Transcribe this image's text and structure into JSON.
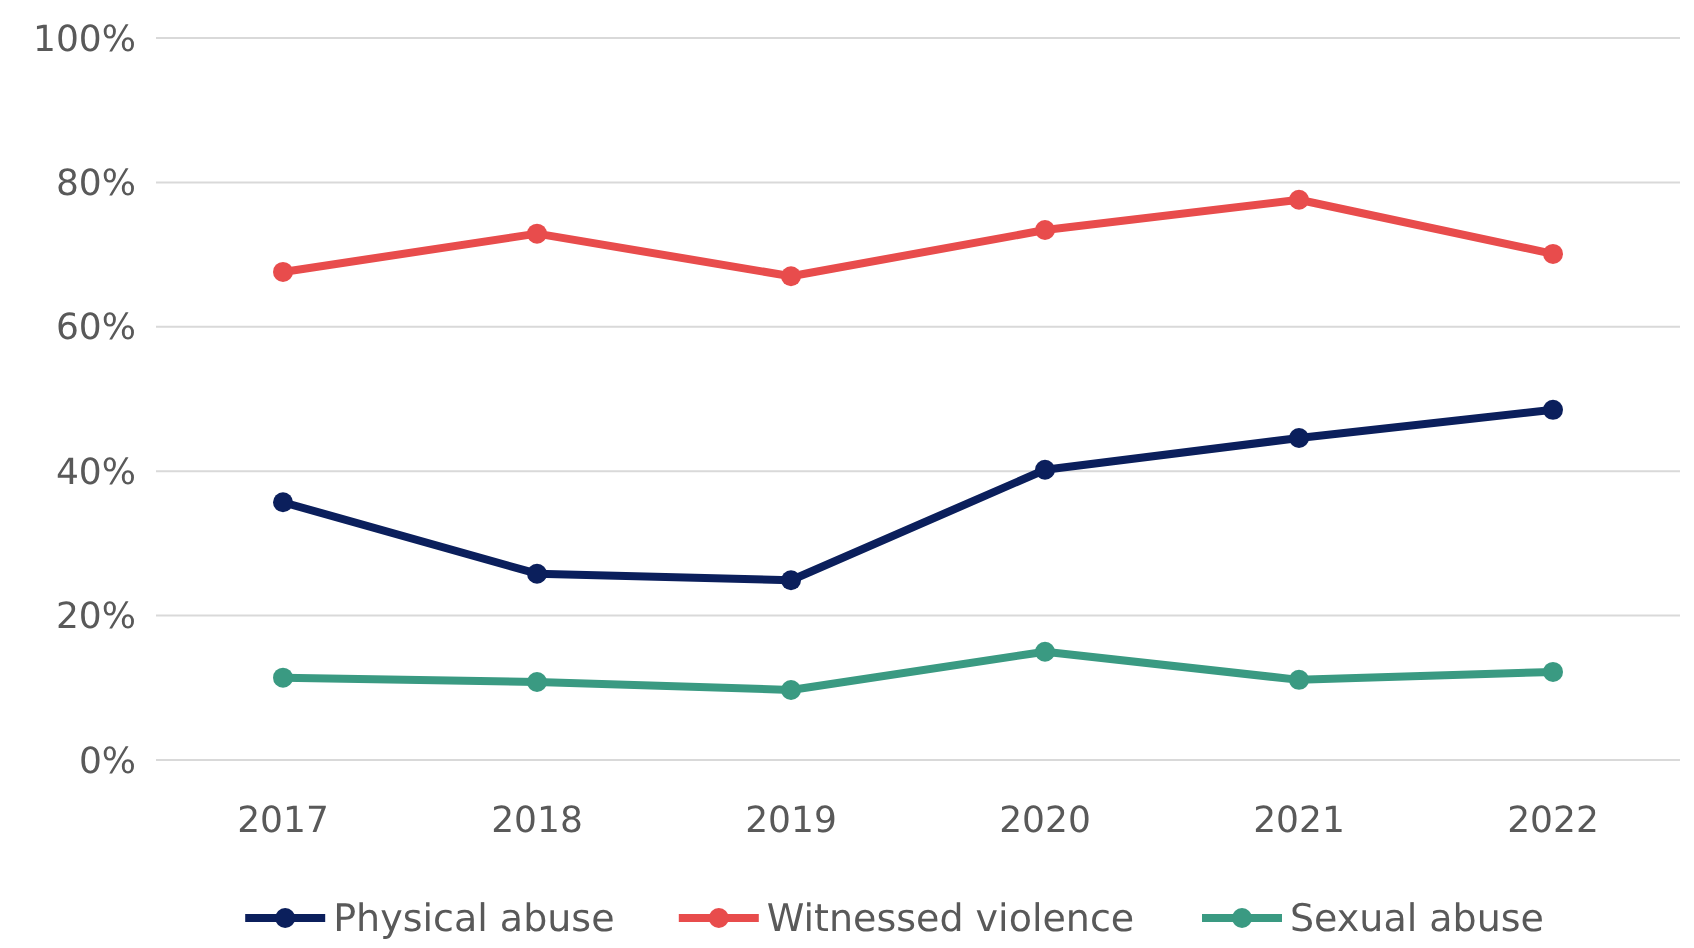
{
  "chart_data": {
    "type": "line",
    "categories": [
      "2017",
      "2018",
      "2019",
      "2020",
      "2021",
      "2022"
    ],
    "series": [
      {
        "name": "Physical abuse",
        "color": "#0b1f5c",
        "values": [
          35.7,
          25.8,
          24.9,
          40.2,
          44.6,
          48.5
        ]
      },
      {
        "name": "Witnessed violence",
        "color": "#e84c4c",
        "values": [
          67.6,
          72.9,
          67,
          73.4,
          77.6,
          70.1
        ]
      },
      {
        "name": "Sexual abuse",
        "color": "#3a9a82",
        "values": [
          11.4,
          10.8,
          9.7,
          15,
          11.1,
          12.2
        ]
      }
    ],
    "ylim": [
      0,
      100
    ],
    "yticks": [
      {
        "value": 0,
        "label": "0%"
      },
      {
        "value": 20,
        "label": "20%"
      },
      {
        "value": 40,
        "label": "40%"
      },
      {
        "value": 60,
        "label": "60%"
      },
      {
        "value": 80,
        "label": "80%"
      },
      {
        "value": 100,
        "label": "100%"
      }
    ],
    "grid": "y",
    "legend": "bottom",
    "marker": "circle",
    "line_style": "solid"
  }
}
